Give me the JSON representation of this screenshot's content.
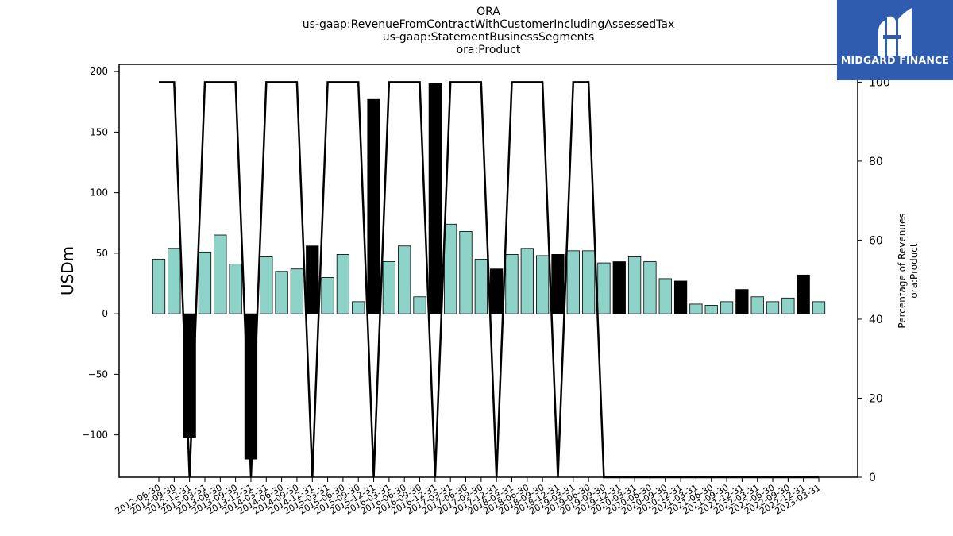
{
  "chart_data": {
    "type": "bar",
    "title_lines": [
      "ORA",
      "us-gaap:RevenueFromContractWithCustomerIncludingAssessedTax",
      "us-gaap:StatementBusinessSegments",
      "ora:Product"
    ],
    "ylabel": "USDm",
    "y2label_lines": [
      "Percentage of Revenues",
      "ora:Product"
    ],
    "ylim": [
      -135,
      206
    ],
    "y2lim": [
      0,
      104.5
    ],
    "yticks": [
      -100,
      -50,
      0,
      50,
      100,
      150,
      200
    ],
    "y2ticks": [
      0,
      20,
      40,
      60,
      80,
      100
    ],
    "grid": false,
    "legend": "none",
    "categories": [
      "2012-06-30",
      "2012-09-30",
      "2012-12-31",
      "2013-03-31",
      "2013-06-30",
      "2013-09-30",
      "2013-12-31",
      "2014-03-31",
      "2014-06-30",
      "2014-09-30",
      "2014-12-31",
      "2015-03-31",
      "2015-06-30",
      "2015-09-30",
      "2015-12-31",
      "2016-03-31",
      "2016-06-30",
      "2016-09-30",
      "2016-12-31",
      "2017-03-31",
      "2017-06-30",
      "2017-09-30",
      "2017-12-31",
      "2018-03-31",
      "2018-06-30",
      "2018-09-30",
      "2018-12-31",
      "2019-03-31",
      "2019-06-30",
      "2019-09-30",
      "2019-12-31",
      "2020-03-31",
      "2020-06-30",
      "2020-09-30",
      "2020-12-31",
      "2021-03-31",
      "2021-06-30",
      "2021-09-30",
      "2021-12-31",
      "2022-03-31",
      "2022-06-30",
      "2022-09-30",
      "2022-12-31",
      "2023-03-31"
    ],
    "values": [
      45,
      54,
      -102,
      51,
      65,
      41,
      -120,
      47,
      35,
      37,
      56,
      30,
      49,
      10,
      177,
      43,
      56,
      14,
      190,
      74,
      68,
      45,
      37,
      49,
      54,
      48,
      49,
      52,
      52,
      42,
      43,
      47,
      43,
      29,
      27,
      8,
      7,
      10,
      20,
      14,
      10,
      13,
      32,
      10
    ],
    "highlight": [
      false,
      false,
      true,
      false,
      false,
      false,
      true,
      false,
      false,
      false,
      true,
      false,
      false,
      false,
      true,
      false,
      false,
      false,
      true,
      false,
      false,
      false,
      true,
      false,
      false,
      false,
      true,
      false,
      false,
      false,
      true,
      false,
      false,
      false,
      true,
      false,
      false,
      false,
      true,
      false,
      false,
      false,
      true,
      false
    ],
    "percentage_line": [
      100,
      100,
      0,
      100,
      100,
      100,
      0,
      100,
      100,
      100,
      0,
      100,
      100,
      100,
      0,
      100,
      100,
      100,
      0,
      100,
      100,
      100,
      0,
      100,
      100,
      100,
      0,
      100,
      100,
      0,
      0,
      0,
      0,
      0,
      0,
      0,
      0,
      0,
      0,
      0,
      0,
      0,
      0,
      0
    ],
    "colors": {
      "bar": "#8dd3c7",
      "highlight": "#000000",
      "line": "#000000"
    }
  },
  "logo": {
    "text": "MIDGARD FINANCE",
    "background": "#2f5caf"
  }
}
